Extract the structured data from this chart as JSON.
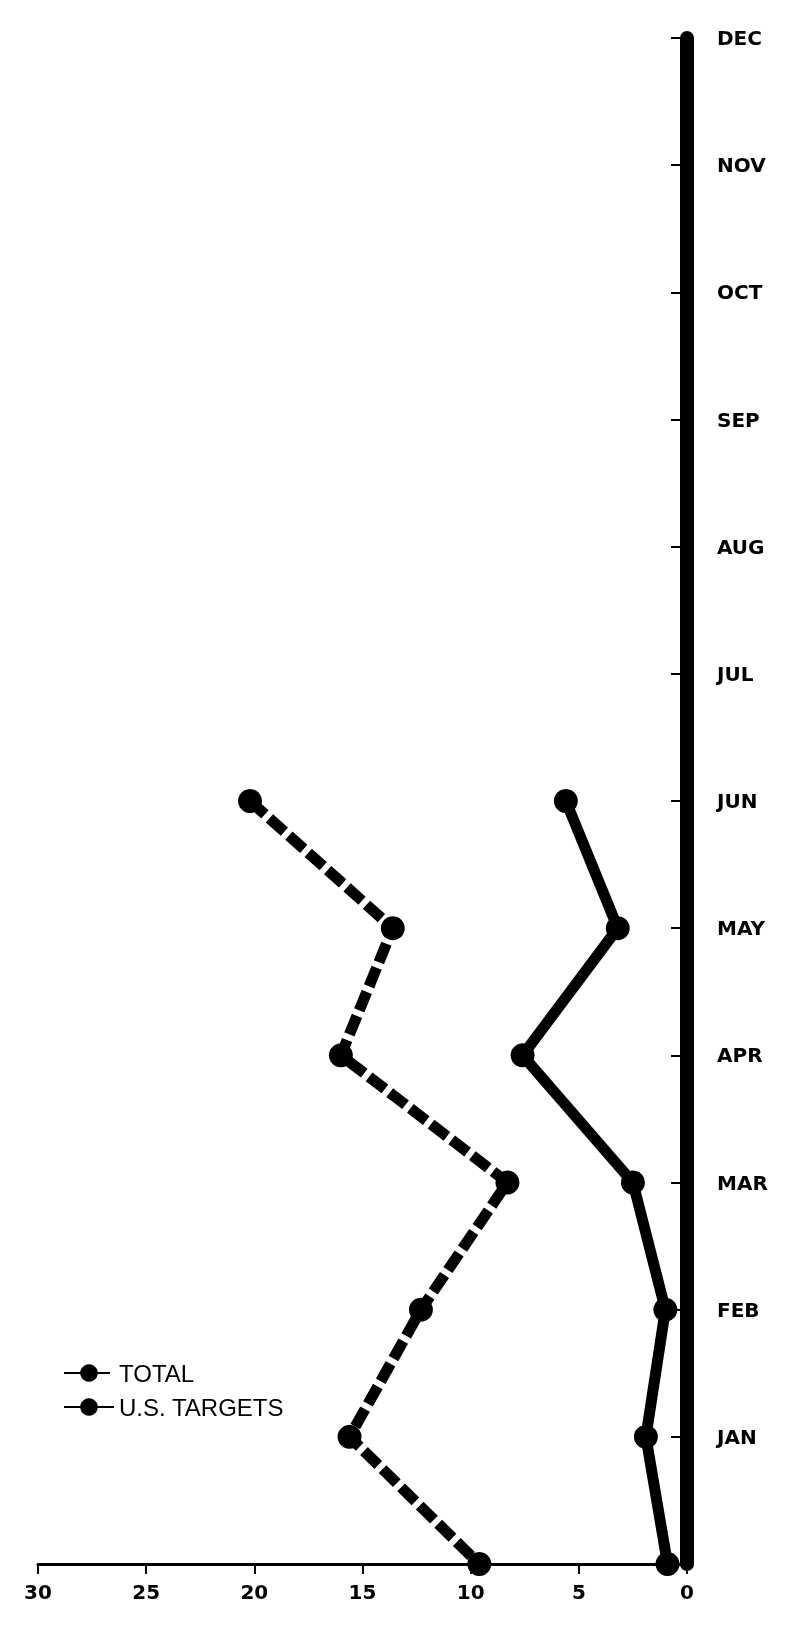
{
  "chart_data": {
    "type": "line",
    "orientation": "horizontal",
    "categories": [
      "DEC",
      "NOV",
      "OCT",
      "SEP",
      "AUG",
      "JUL",
      "JUN",
      "MAY",
      "APR",
      "MAR",
      "FEB",
      "JAN",
      null
    ],
    "series": [
      {
        "name": "TOTAL",
        "color": "#000000",
        "line_style": "dashed",
        "values": [
          null,
          null,
          null,
          null,
          null,
          null,
          20.2,
          13.6,
          16.0,
          8.3,
          12.3,
          15.6,
          9.6
        ]
      },
      {
        "name": "U.S. TARGETS",
        "color": "#000000",
        "line_style": "solid",
        "values": [
          null,
          null,
          null,
          null,
          null,
          null,
          5.6,
          3.2,
          7.6,
          2.5,
          1.0,
          1.9,
          0.9
        ]
      }
    ],
    "xlim": [
      30,
      0
    ],
    "xticks": [
      0,
      5,
      10,
      15,
      20,
      25,
      30
    ],
    "grid": false,
    "legend": "bottom left",
    "marker": "circle"
  }
}
